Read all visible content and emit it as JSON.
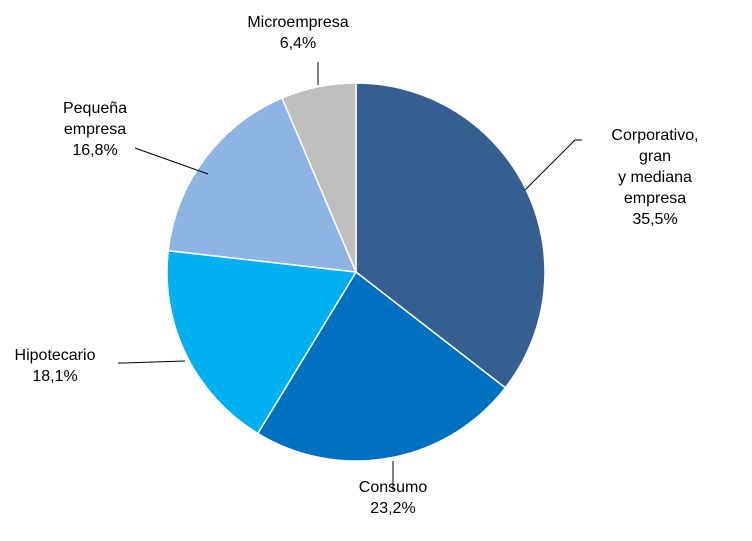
{
  "chart_data": {
    "type": "pie",
    "categories": [
      "Corporativo, gran\ny mediana\nempresa",
      "Consumo",
      "Hipotecario",
      "Pequeña\nempresa",
      "Microempresa"
    ],
    "values": [
      35.5,
      23.2,
      18.1,
      16.8,
      6.4
    ],
    "value_labels": [
      "35,5%",
      "23,2%",
      "18,1%",
      "16,8%",
      "6,4%"
    ],
    "colors": [
      "#355f91",
      "#0070c0",
      "#00b0f0",
      "#8db4e2",
      "#bfbfbf"
    ]
  }
}
